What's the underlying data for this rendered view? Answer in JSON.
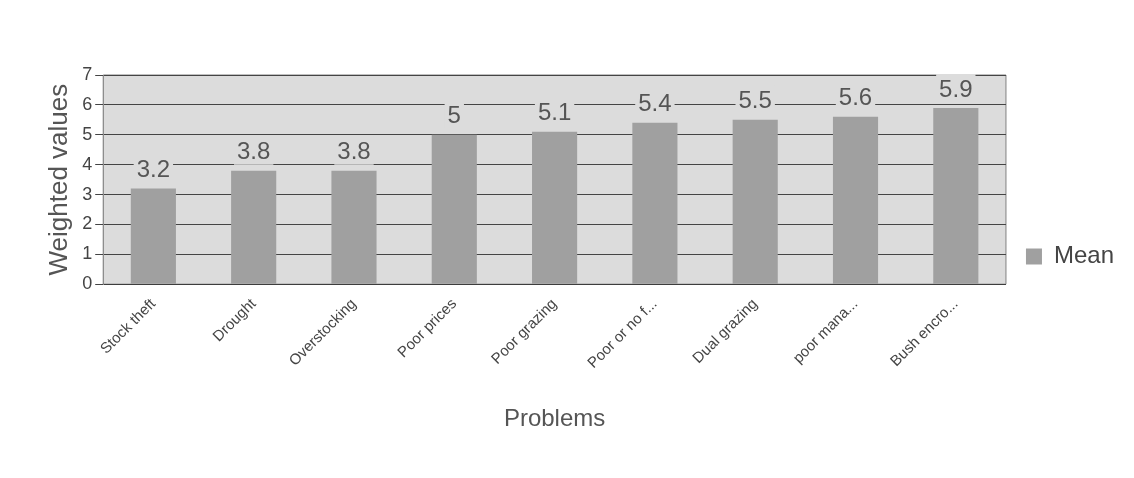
{
  "chart_data": {
    "type": "bar",
    "xlabel": "Problems",
    "ylabel": "Weighted values",
    "categories": [
      "Stock theft",
      "Drought",
      "Overstocking",
      "Poor prices",
      "Poor grazing",
      "Poor or no f...",
      "Dual grazing",
      "poor mana...",
      "Bush encro..."
    ],
    "series": [
      {
        "name": "Mean",
        "color": "#a0a0a0",
        "values": [
          3.2,
          3.8,
          3.8,
          5,
          5.1,
          5.4,
          5.5,
          5.6,
          5.9
        ]
      }
    ],
    "ylim": [
      0,
      7
    ],
    "yticks": [
      0,
      1,
      2,
      3,
      4,
      5,
      6,
      7
    ],
    "grid": "y",
    "legend": "right",
    "data_labels": true
  }
}
